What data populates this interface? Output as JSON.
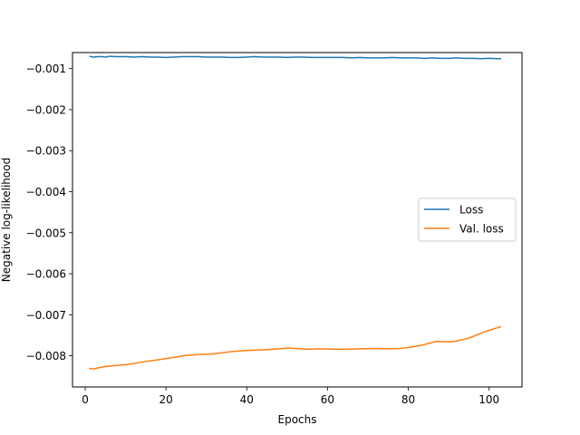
{
  "chart_data": {
    "type": "line",
    "title": "",
    "xlabel": "Epochs",
    "ylabel": "Negative log-likelihood",
    "xlim": [
      -3.15,
      108.15
    ],
    "ylim": [
      -0.00876,
      -0.00061
    ],
    "xticks": [
      0,
      20,
      40,
      60,
      80,
      100
    ],
    "xtick_labels": [
      "0",
      "20",
      "40",
      "60",
      "80",
      "100"
    ],
    "yticks": [
      -0.001,
      -0.002,
      -0.003,
      -0.004,
      -0.005,
      -0.006,
      -0.007,
      -0.008
    ],
    "ytick_labels": [
      "−0.001",
      "−0.002",
      "−0.003",
      "−0.004",
      "−0.005",
      "−0.006",
      "−0.007",
      "−0.008"
    ],
    "grid": false,
    "legend_position": "center-right",
    "series": [
      {
        "name": "Loss",
        "color": "#1f77b4",
        "x": [
          1,
          2,
          3,
          4,
          5,
          6,
          8,
          10,
          12,
          14,
          16,
          18,
          20,
          22,
          24,
          26,
          28,
          30,
          32,
          34,
          36,
          38,
          40,
          42,
          44,
          46,
          48,
          50,
          52,
          54,
          56,
          58,
          60,
          62,
          64,
          66,
          68,
          70,
          72,
          74,
          76,
          78,
          80,
          82,
          84,
          86,
          88,
          90,
          92,
          94,
          96,
          98,
          100,
          102,
          103
        ],
        "y": [
          -0.0007,
          -0.00072,
          -0.00071,
          -0.00071,
          -0.00072,
          -0.0007,
          -0.00071,
          -0.00071,
          -0.00072,
          -0.00071,
          -0.00072,
          -0.00072,
          -0.00073,
          -0.00072,
          -0.00071,
          -0.00071,
          -0.00071,
          -0.00072,
          -0.00072,
          -0.00072,
          -0.00073,
          -0.00073,
          -0.00072,
          -0.00071,
          -0.00072,
          -0.00072,
          -0.00072,
          -0.00073,
          -0.00072,
          -0.00072,
          -0.00073,
          -0.00073,
          -0.00073,
          -0.00073,
          -0.00073,
          -0.00074,
          -0.00073,
          -0.00074,
          -0.00074,
          -0.00074,
          -0.00073,
          -0.00074,
          -0.00074,
          -0.00074,
          -0.00075,
          -0.00074,
          -0.00075,
          -0.00075,
          -0.00074,
          -0.00075,
          -0.00075,
          -0.00076,
          -0.00075,
          -0.00076,
          -0.00076
        ]
      },
      {
        "name": "Val. loss",
        "color": "#ff7f0e",
        "x": [
          1,
          2,
          3,
          5,
          7,
          10,
          15,
          20,
          25,
          28,
          32,
          36,
          40,
          45,
          48,
          50,
          52,
          55,
          58,
          62,
          65,
          68,
          72,
          75,
          78,
          80,
          83,
          85,
          87,
          90,
          92,
          95,
          98,
          100,
          103
        ],
        "y": [
          -0.00831,
          -0.00832,
          -0.0083,
          -0.00826,
          -0.00824,
          -0.00822,
          -0.00814,
          -0.00807,
          -0.00799,
          -0.00797,
          -0.00795,
          -0.0079,
          -0.00787,
          -0.00785,
          -0.00783,
          -0.00781,
          -0.00782,
          -0.00784,
          -0.00783,
          -0.00784,
          -0.00784,
          -0.00783,
          -0.00782,
          -0.00783,
          -0.00782,
          -0.0078,
          -0.00775,
          -0.0077,
          -0.00765,
          -0.00766,
          -0.00764,
          -0.00757,
          -0.00745,
          -0.00738,
          -0.00729
        ]
      }
    ]
  }
}
